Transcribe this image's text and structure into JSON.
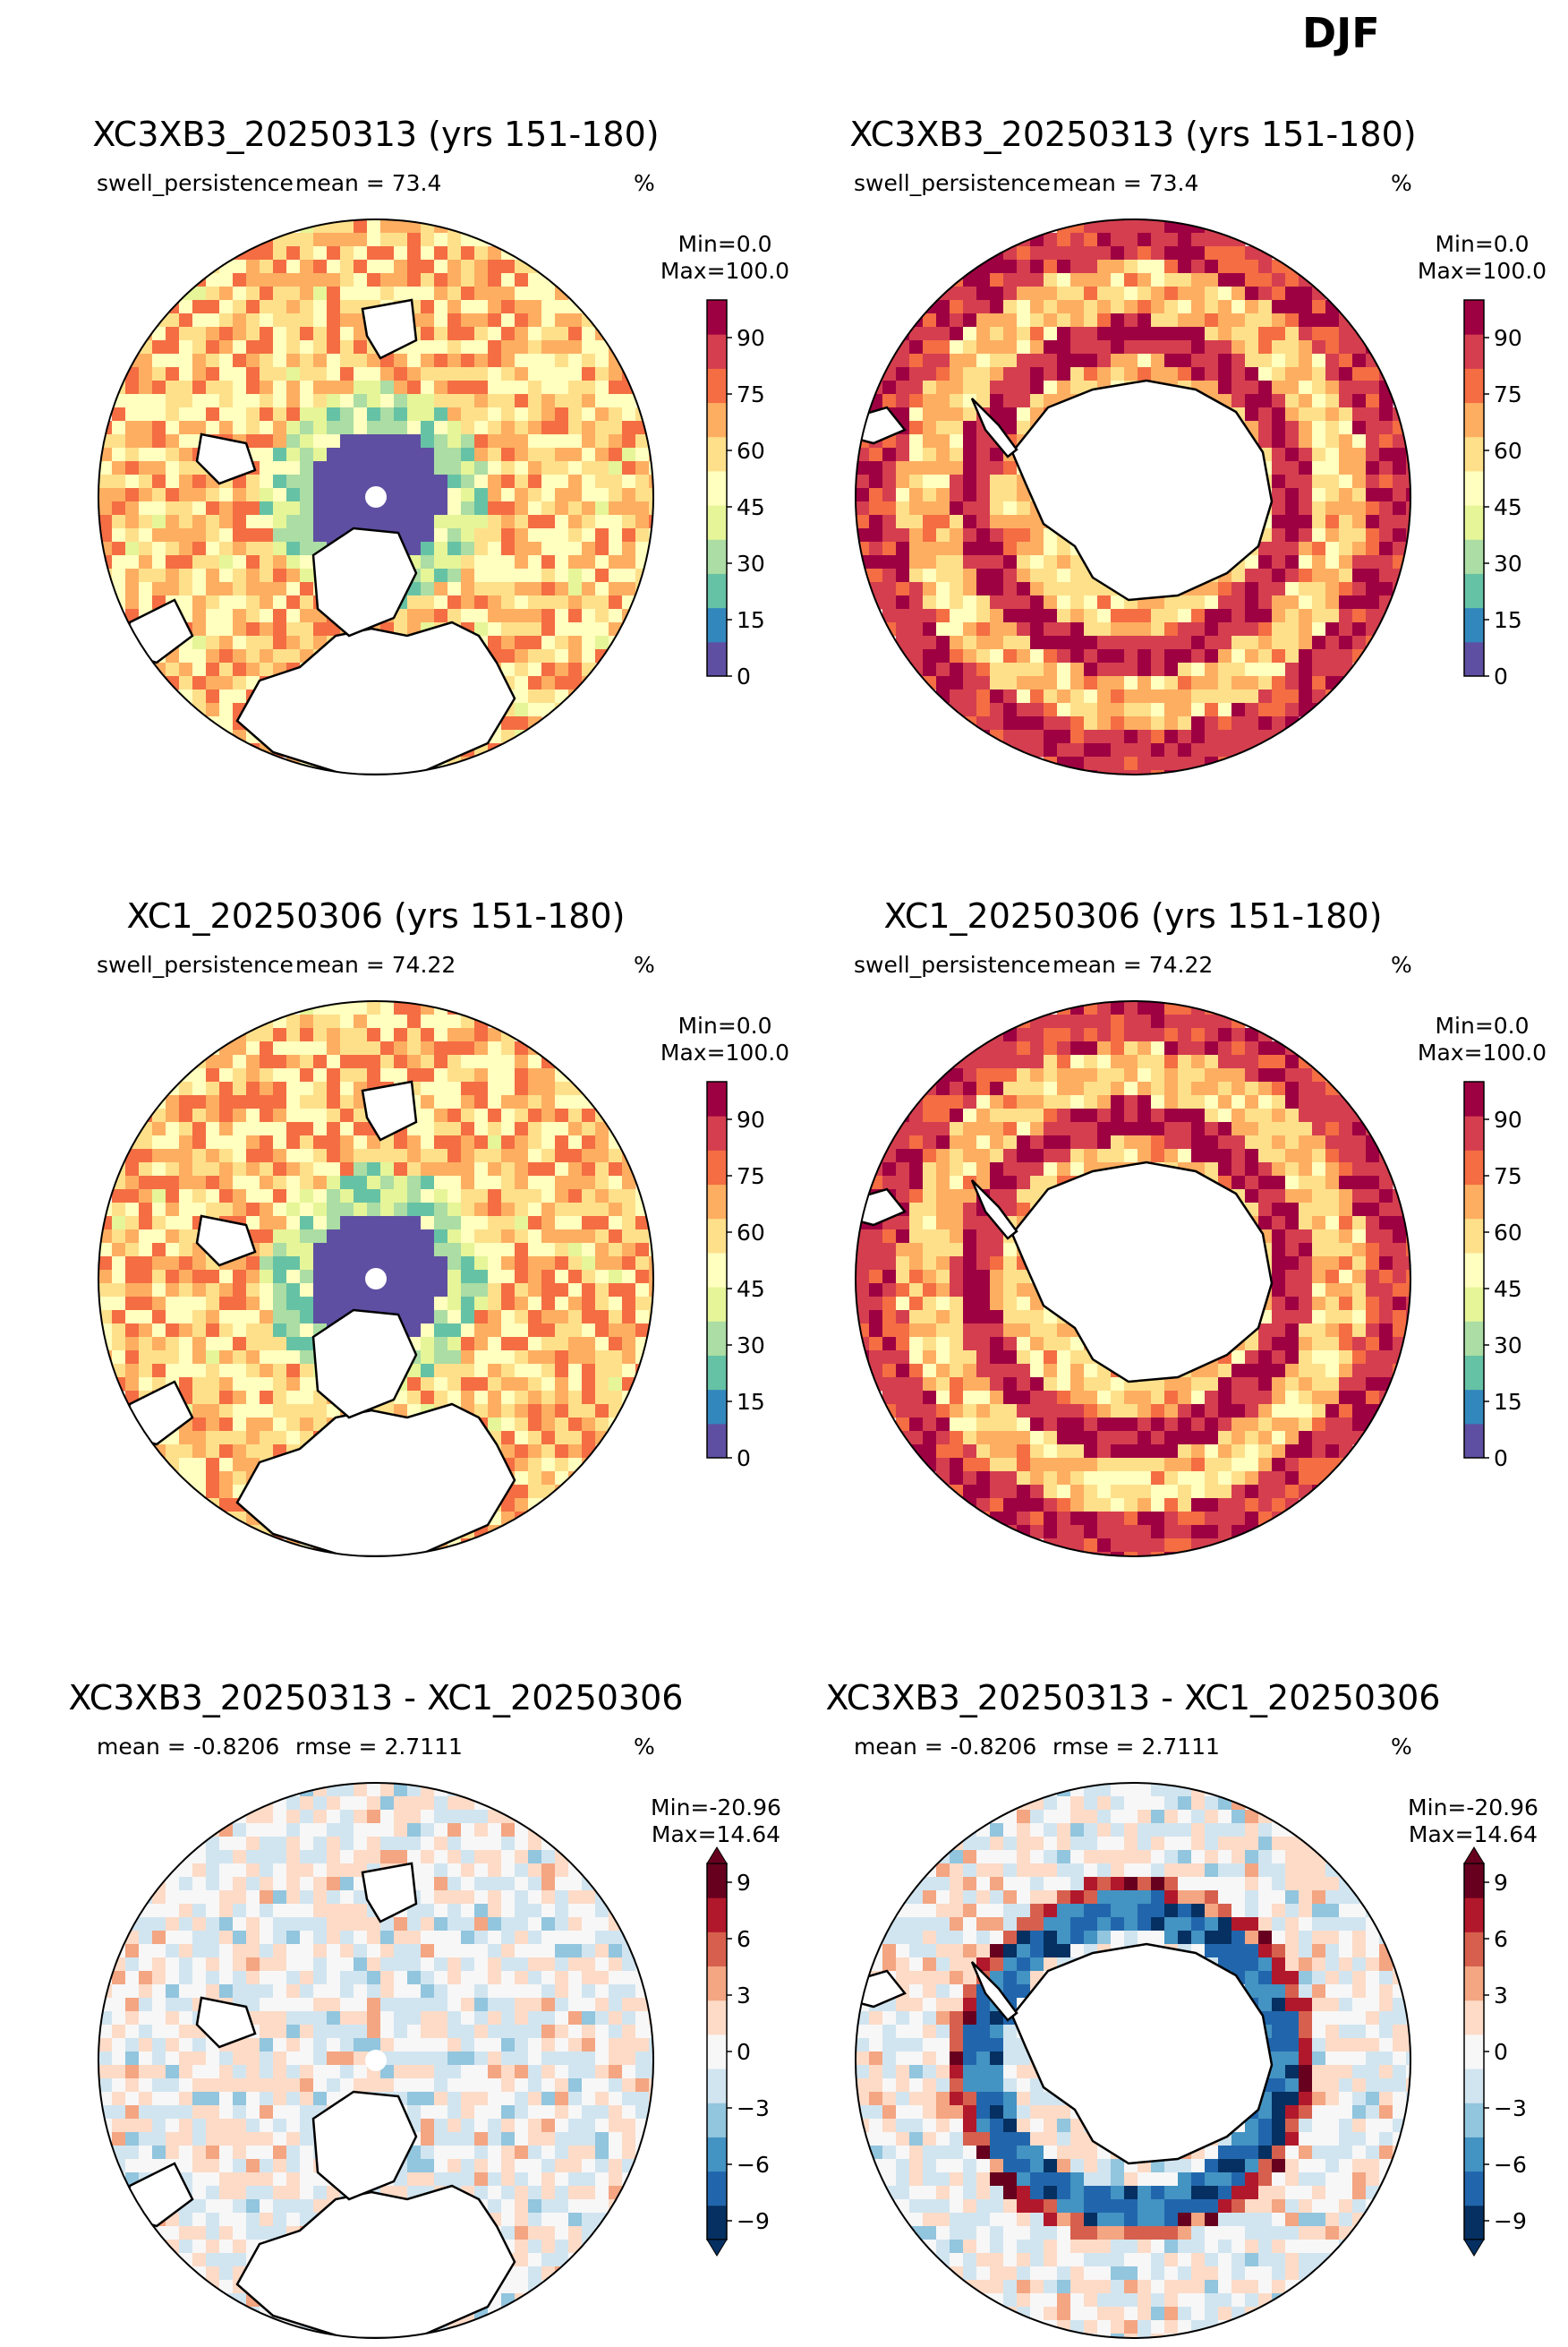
{
  "figure": {
    "suptitle": "DJF"
  },
  "colors": {
    "seq": [
      "#5e4fa2",
      "#3288bd",
      "#66c2a5",
      "#abdda4",
      "#e6f598",
      "#ffffbf",
      "#fee08b",
      "#fdae61",
      "#f46d43",
      "#d53e4f",
      "#9e0142"
    ],
    "div": [
      "#053061",
      "#2166ac",
      "#4393c3",
      "#92c5de",
      "#d1e5f0",
      "#f7f7f7",
      "#fddbc7",
      "#f4a582",
      "#d6604d",
      "#b2182b",
      "#67001f"
    ]
  },
  "chart_data": [
    {
      "type": "heatmap",
      "projection": "north-polar-stereographic",
      "title": "XC3XB3_20250313 (yrs 151-180)",
      "variable": "swell_persistence",
      "mean_text": "mean = 73.4",
      "units": "%",
      "min_text": "Min=0.0",
      "max_text": "Max=100.0",
      "colorbar": {
        "range": [
          0,
          100
        ],
        "ticks": [
          "0",
          "15",
          "30",
          "45",
          "60",
          "75",
          "90"
        ],
        "colormap": "Spectral_r"
      }
    },
    {
      "type": "heatmap",
      "projection": "south-polar-stereographic",
      "title": "XC3XB3_20250313 (yrs 151-180)",
      "variable": "swell_persistence",
      "mean_text": "mean = 73.4",
      "units": "%",
      "min_text": "Min=0.0",
      "max_text": "Max=100.0",
      "colorbar": {
        "range": [
          0,
          100
        ],
        "ticks": [
          "0",
          "15",
          "30",
          "45",
          "60",
          "75",
          "90"
        ],
        "colormap": "Spectral_r"
      }
    },
    {
      "type": "heatmap",
      "projection": "north-polar-stereographic",
      "title": "XC1_20250306 (yrs 151-180)",
      "variable": "swell_persistence",
      "mean_text": "mean = 74.22",
      "units": "%",
      "min_text": "Min=0.0",
      "max_text": "Max=100.0",
      "colorbar": {
        "range": [
          0,
          100
        ],
        "ticks": [
          "0",
          "15",
          "30",
          "45",
          "60",
          "75",
          "90"
        ],
        "colormap": "Spectral_r"
      }
    },
    {
      "type": "heatmap",
      "projection": "south-polar-stereographic",
      "title": "XC1_20250306 (yrs 151-180)",
      "variable": "swell_persistence",
      "mean_text": "mean = 74.22",
      "units": "%",
      "min_text": "Min=0.0",
      "max_text": "Max=100.0",
      "colorbar": {
        "range": [
          0,
          100
        ],
        "ticks": [
          "0",
          "15",
          "30",
          "45",
          "60",
          "75",
          "90"
        ],
        "colormap": "Spectral_r"
      }
    },
    {
      "type": "heatmap",
      "projection": "north-polar-stereographic",
      "title": "XC3XB3_20250313 - XC1_20250306",
      "variable": "mean = -0.8206",
      "mean_text": "rmse = 2.7111",
      "units": "%",
      "min_text": "Min=-20.96",
      "max_text": "Max=14.64",
      "colorbar": {
        "range": [
          -10,
          10
        ],
        "ticks": [
          "−9",
          "−6",
          "−3",
          "0",
          "3",
          "6",
          "9"
        ],
        "colormap": "RdBu_r",
        "extend": "both"
      }
    },
    {
      "type": "heatmap",
      "projection": "south-polar-stereographic",
      "title": "XC3XB3_20250313 - XC1_20250306",
      "variable": "mean = -0.8206",
      "mean_text": "rmse = 2.7111",
      "units": "%",
      "min_text": "Min=-20.96",
      "max_text": "Max=14.64",
      "colorbar": {
        "range": [
          -10,
          10
        ],
        "ticks": [
          "−9",
          "−6",
          "−3",
          "0",
          "3",
          "6",
          "9"
        ],
        "colormap": "RdBu_r",
        "extend": "both"
      }
    }
  ]
}
